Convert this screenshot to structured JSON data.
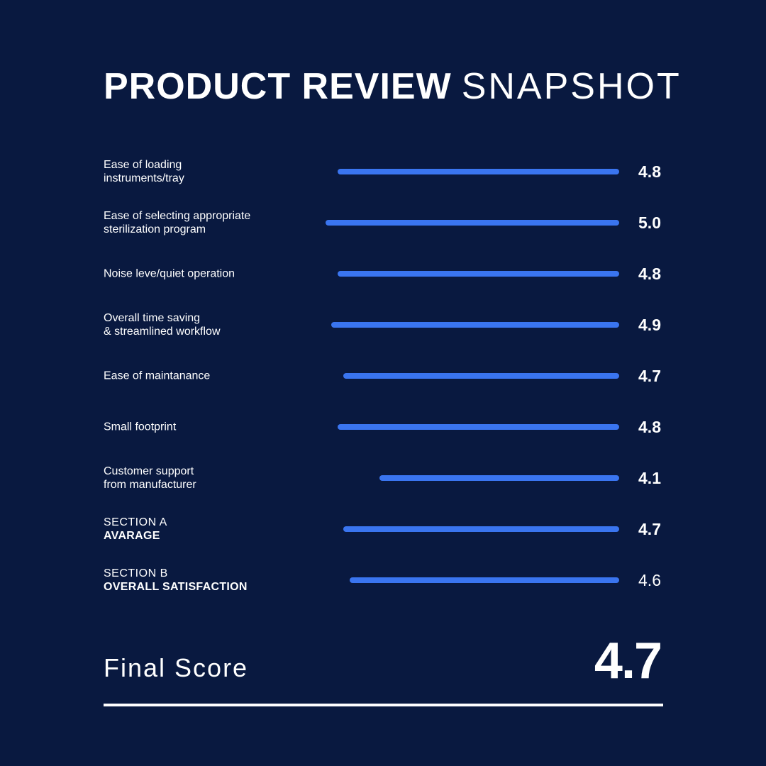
{
  "title": {
    "bold": "PRODUCT REVIEW",
    "light": "SNAPSHOT"
  },
  "colors": {
    "background": "#091940",
    "bar": "#3a75f0",
    "text": "#ffffff"
  },
  "chart_data": {
    "type": "bar",
    "orientation": "horizontal",
    "categories": [
      "Ease of loading instruments/tray",
      "Ease of selecting appropriate sterilization program",
      "Noise leve/quiet operation",
      "Overall time saving & streamlined workflow",
      "Ease of maintanance",
      "Small footprint",
      "Customer support from manufacturer",
      "SECTION A AVARAGE",
      "SECTION B OVERALL SATISFACTION"
    ],
    "values": [
      4.8,
      5.0,
      4.8,
      4.9,
      4.7,
      4.8,
      4.1,
      4.7,
      4.6
    ],
    "value_labels": [
      "4.8",
      "5.0",
      "4.8",
      "4.9",
      "4.7",
      "4.8",
      "4.1",
      "4.7",
      "4.6"
    ],
    "xlim": [
      0,
      5.0
    ],
    "rows": [
      {
        "lines": [
          "Ease of loading",
          "instruments/tray"
        ]
      },
      {
        "lines": [
          "Ease of selecting appropriate",
          "sterilization program"
        ]
      },
      {
        "lines": [
          "Noise leve/quiet operation"
        ]
      },
      {
        "lines": [
          "Overall time saving",
          "& streamlined workflow"
        ]
      },
      {
        "lines": [
          "Ease of maintanance"
        ]
      },
      {
        "lines": [
          "Small footprint"
        ]
      },
      {
        "lines": [
          "Customer support",
          "from manufacturer"
        ]
      },
      {
        "section": "SECTION A",
        "subtitle": "AVARAGE"
      },
      {
        "section": "SECTION B",
        "subtitle": "OVERALL SATISFACTION",
        "light_value": true
      }
    ]
  },
  "final": {
    "label": "Final Score",
    "value": "4.7"
  }
}
